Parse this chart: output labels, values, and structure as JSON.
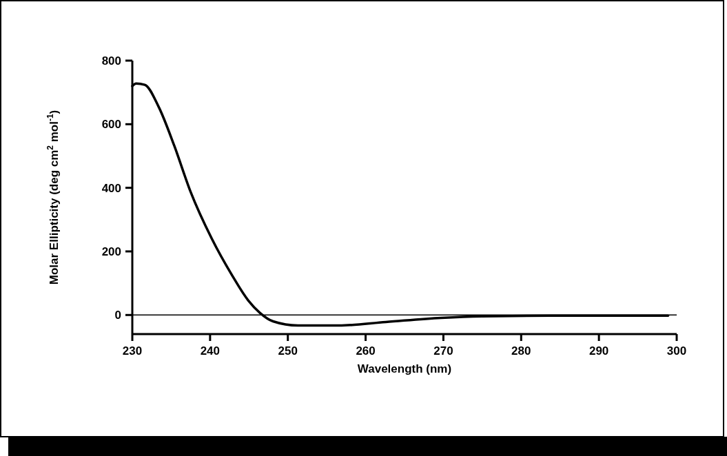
{
  "chart_data": {
    "type": "line",
    "xlabel": "Wavelength (nm)",
    "ylabel": "Molar Ellipticity (deg cm$^{2}$ mol$^{-1}$)",
    "series": [
      {
        "color": "#000000",
        "x": [
          230,
          230.5,
          231.6,
          233.4,
          235.4,
          237.5,
          240.2,
          242.8,
          244.9,
          246.4,
          248.1,
          251.3,
          256.6,
          262.6,
          269.7,
          275,
          283.9,
          298.9
        ],
        "values": [
          720,
          728,
          724,
          654,
          532,
          387,
          241,
          126,
          46,
          7,
          -20,
          -33,
          -33,
          -22,
          -9,
          -4,
          -2,
          -2
        ]
      }
    ],
    "xlim": [
      230,
      300
    ],
    "xticks": [
      230,
      240,
      250,
      260,
      270,
      280,
      290,
      300
    ],
    "ylim": [
      -60,
      800
    ],
    "yticks": [
      0,
      200,
      400,
      600,
      800
    ],
    "ref_lines": [
      {
        "axis": "y",
        "value": 0,
        "color": "#000000"
      }
    ],
    "grid": false,
    "marker": "none",
    "line_style": "solid"
  }
}
